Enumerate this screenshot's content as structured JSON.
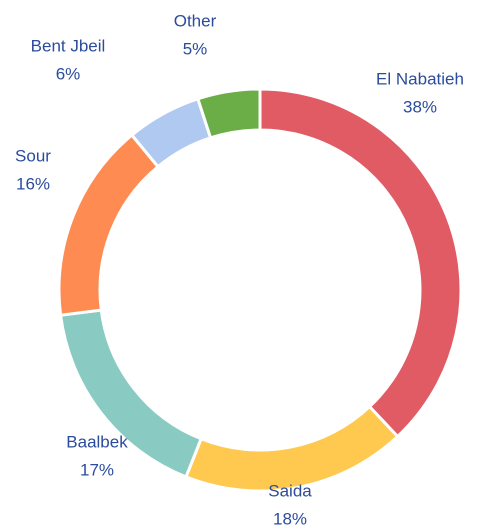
{
  "chart_data": {
    "type": "donut",
    "categories": [
      "El Nabatieh",
      "Saida",
      "Baalbek",
      "Sour",
      "Bent Jbeil",
      "Other"
    ],
    "values": [
      38,
      18,
      17,
      16,
      6,
      5
    ],
    "value_labels": [
      "38%",
      "18%",
      "17%",
      "16%",
      "6%",
      "5%"
    ],
    "colors": [
      "#e05b64",
      "#ffc94f",
      "#89cbc3",
      "#fe8c52",
      "#afc9f1",
      "#6bad47"
    ]
  }
}
